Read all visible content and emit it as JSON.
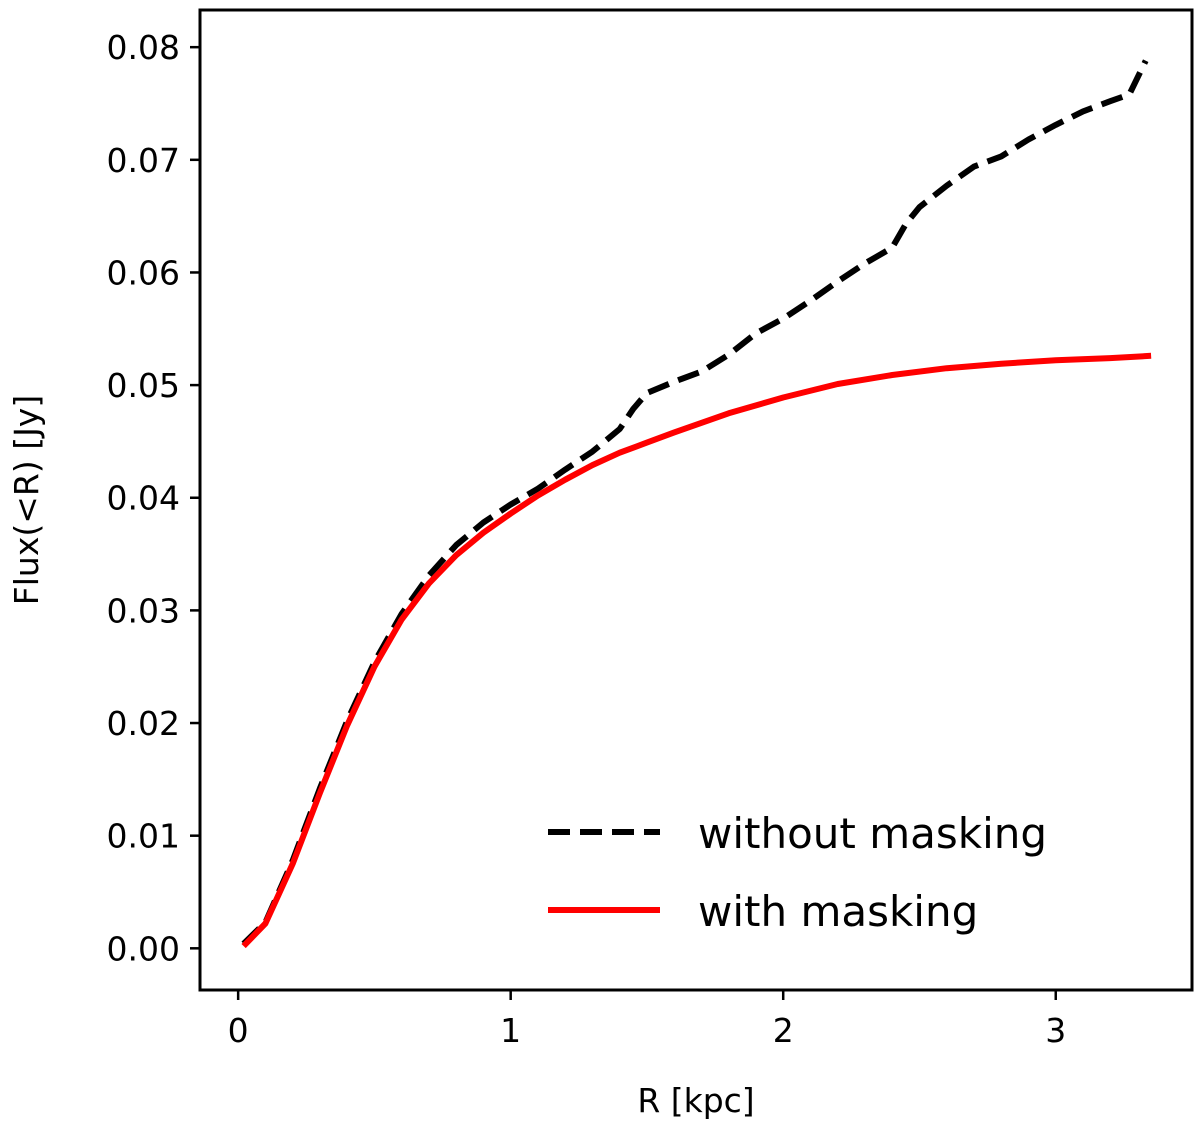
{
  "chart_data": {
    "type": "line",
    "title": "",
    "xlabel": "R [kpc]",
    "ylabel": "Flux(<R) [Jy]",
    "xlim": [
      -0.14,
      3.5
    ],
    "ylim": [
      -0.0037,
      0.0833
    ],
    "xticks": [
      0,
      1,
      2,
      3
    ],
    "xtick_labels": [
      "0",
      "1",
      "2",
      "3"
    ],
    "yticks": [
      0.0,
      0.01,
      0.02,
      0.03,
      0.04,
      0.05,
      0.06,
      0.07,
      0.08
    ],
    "ytick_labels": [
      "0.00",
      "0.01",
      "0.02",
      "0.03",
      "0.04",
      "0.05",
      "0.06",
      "0.07",
      "0.08"
    ],
    "grid": false,
    "legend_position": "lower-right",
    "series": [
      {
        "name": "without masking",
        "color": "#000000",
        "style": "dashed",
        "x": [
          0.02,
          0.1,
          0.2,
          0.3,
          0.4,
          0.5,
          0.6,
          0.7,
          0.8,
          0.9,
          1.0,
          1.1,
          1.2,
          1.3,
          1.4,
          1.45,
          1.5,
          1.6,
          1.7,
          1.8,
          1.9,
          2.0,
          2.1,
          2.2,
          2.3,
          2.4,
          2.45,
          2.5,
          2.6,
          2.7,
          2.8,
          2.9,
          3.0,
          3.1,
          3.2,
          3.27,
          3.33
        ],
        "y": [
          0.0004,
          0.0023,
          0.0078,
          0.0142,
          0.0202,
          0.0254,
          0.0297,
          0.0331,
          0.0358,
          0.0378,
          0.0394,
          0.0408,
          0.0425,
          0.0441,
          0.0461,
          0.0479,
          0.0493,
          0.0503,
          0.0512,
          0.0527,
          0.0546,
          0.0559,
          0.0575,
          0.0592,
          0.0608,
          0.0622,
          0.0643,
          0.0658,
          0.0677,
          0.0694,
          0.0703,
          0.0718,
          0.0731,
          0.0743,
          0.0752,
          0.0758,
          0.0788
        ]
      },
      {
        "name": "with masking",
        "color": "#ff0000",
        "style": "solid",
        "x": [
          0.02,
          0.1,
          0.2,
          0.3,
          0.4,
          0.5,
          0.6,
          0.7,
          0.8,
          0.9,
          1.0,
          1.1,
          1.2,
          1.3,
          1.4,
          1.5,
          1.6,
          1.8,
          2.0,
          2.2,
          2.4,
          2.6,
          2.8,
          3.0,
          3.2,
          3.35
        ],
        "y": [
          0.0002,
          0.0022,
          0.0075,
          0.0138,
          0.0198,
          0.025,
          0.0292,
          0.0324,
          0.0349,
          0.0369,
          0.0386,
          0.0402,
          0.0416,
          0.0429,
          0.044,
          0.0449,
          0.0458,
          0.0475,
          0.0489,
          0.0501,
          0.0509,
          0.0515,
          0.0519,
          0.0522,
          0.0524,
          0.0526
        ]
      }
    ]
  }
}
